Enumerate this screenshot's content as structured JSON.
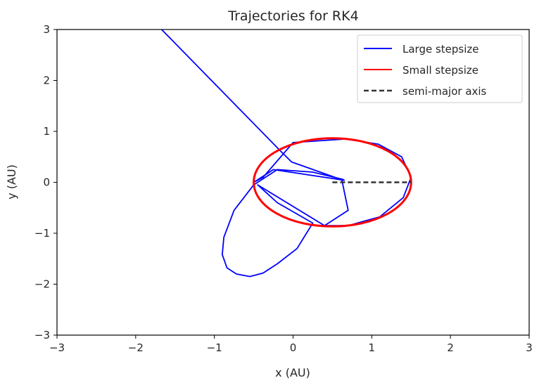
{
  "chart_data": {
    "type": "line",
    "title": "Trajectories for RK4",
    "xlabel": "x (AU)",
    "ylabel": "y (AU)",
    "xlim": [
      -3,
      3
    ],
    "ylim": [
      -3,
      3
    ],
    "xticks": [
      -3,
      -2,
      -1,
      0,
      1,
      2,
      3
    ],
    "yticks": [
      -3,
      -2,
      -1,
      0,
      1,
      2,
      3
    ],
    "xtick_labels": [
      "−3",
      "−2",
      "−1",
      "0",
      "1",
      "2",
      "3"
    ],
    "ytick_labels": [
      "−3",
      "−2",
      "−1",
      "0",
      "1",
      "2",
      "3"
    ],
    "grid": false,
    "legend_position": "top-right",
    "series": [
      {
        "name": "Large stepsize",
        "color": "#0000ff",
        "style": "solid",
        "x": [
          -1.67,
          -0.15,
          -0.02,
          0.62,
          0.7,
          0.4,
          -0.45,
          -0.2,
          0.25,
          0.05,
          -0.2,
          -0.38,
          -0.55,
          -0.72,
          -0.84,
          -0.9,
          -0.88,
          -0.75,
          -0.5,
          -0.2,
          0.25,
          0.63,
          0.65,
          -0.25,
          -0.5,
          -0.38,
          0.0,
          0.67,
          1.08,
          1.38,
          1.5,
          1.4,
          1.1,
          0.7,
          0.35
        ],
        "y": [
          3.0,
          0.6,
          0.4,
          0.05,
          -0.55,
          -0.85,
          -0.05,
          -0.4,
          -0.8,
          -1.3,
          -1.6,
          -1.78,
          -1.85,
          -1.8,
          -1.68,
          -1.42,
          -1.08,
          -0.55,
          -0.05,
          0.25,
          0.2,
          0.06,
          0.04,
          0.25,
          0.0,
          0.1,
          0.78,
          0.85,
          0.75,
          0.5,
          0.1,
          -0.3,
          -0.68,
          -0.85,
          -0.85
        ]
      },
      {
        "name": "Small stepsize",
        "color": "#ff0000",
        "style": "solid",
        "ellipse": {
          "cx": 0.5,
          "cy": 0.0,
          "a": 1.0,
          "b": 0.866
        }
      },
      {
        "name": "semi-major axis",
        "color": "#333333",
        "style": "dashed",
        "x": [
          0.5,
          1.5
        ],
        "y": [
          0.0,
          0.0
        ]
      }
    ]
  }
}
